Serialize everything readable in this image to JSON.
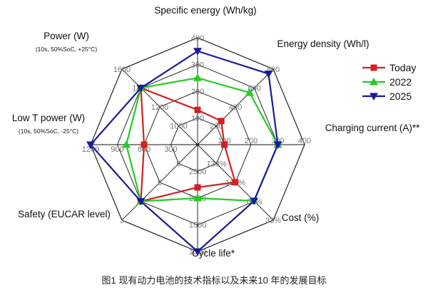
{
  "chart_data": {
    "type": "radar",
    "axes": [
      {
        "label": "Specific energy (Wh/kg)",
        "sub": "",
        "ticks": [
          "100",
          "200",
          "300",
          "400"
        ]
      },
      {
        "label": "Energy density (Wh/l)",
        "sub": "",
        "ticks": [
          "200",
          "400",
          "600",
          "800"
        ]
      },
      {
        "label": "Charging current (A)**",
        "sub": "",
        "ticks": [
          "100",
          "200",
          "300",
          "400"
        ]
      },
      {
        "label": "Cost (%)",
        "sub": "",
        "ticks": [
          "133%",
          "100%",
          "67%",
          "33%"
        ]
      },
      {
        "label": "Cycle life*",
        "sub": "",
        "ticks": [
          "2500",
          "2000",
          "1500",
          "1000"
        ]
      },
      {
        "label": "Safety (EUCAR level)",
        "sub": "",
        "ticks": [
          "6",
          "5",
          "4",
          "3"
        ]
      },
      {
        "label": "Low T power (W)",
        "sub": "(10s, 50%SoC, -25°C)",
        "ticks": [
          "300",
          "600",
          "900",
          "1200"
        ]
      },
      {
        "label": "Power (W)",
        "sub": "(10s, 50%SoC, +25°C)",
        "ticks": [
          "1000",
          "1200",
          "1400",
          "1600"
        ]
      }
    ],
    "series": [
      {
        "name": "Today",
        "color": "#d42020",
        "marker": "square",
        "values": [
          130,
          250,
          100,
          1.0,
          2200,
          4,
          600,
          1400
        ]
      },
      {
        "name": "2022",
        "color": "#22cc22",
        "marker": "triangle-up",
        "values": [
          250,
          550,
          300,
          0.67,
          2000,
          4,
          800,
          1400
        ]
      },
      {
        "name": "2025",
        "color": "#1a1a9e",
        "marker": "triangle-down",
        "values": [
          350,
          750,
          300,
          0.67,
          1000,
          4,
          1200,
          1400
        ]
      }
    ]
  },
  "caption": "图1 现有动力电池的技术指标以及未来10 年的发展目标"
}
